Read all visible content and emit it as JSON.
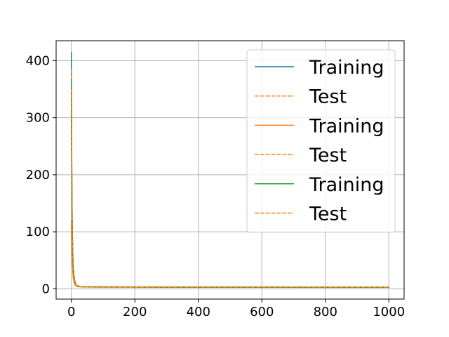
{
  "chart_data": {
    "type": "line",
    "title": "",
    "xlabel": "",
    "ylabel": "",
    "xlim": [
      -48,
      1048
    ],
    "ylim": [
      -18,
      435
    ],
    "xticks": [
      0,
      200,
      400,
      600,
      800,
      1000
    ],
    "yticks": [
      0,
      100,
      200,
      300,
      400
    ],
    "grid": true,
    "legend_position": "top-right",
    "series": [
      {
        "name": "Training",
        "color": "#1f77b4",
        "style": "solid",
        "x": [
          0,
          1,
          2,
          3,
          4,
          5,
          6,
          8,
          10,
          12,
          15,
          20,
          25,
          30,
          40,
          60,
          100,
          200,
          300,
          400,
          500,
          600,
          700,
          800,
          900,
          1000
        ],
        "y": [
          415,
          250,
          160,
          110,
          75,
          55,
          40,
          25,
          16,
          11,
          7,
          5,
          4,
          3.8,
          3.6,
          3.5,
          3.4,
          3.2,
          3.1,
          3.0,
          2.9,
          2.9,
          2.8,
          2.8,
          2.7,
          2.7
        ]
      },
      {
        "name": "Test",
        "color": "#ff7f0e",
        "style": "dashed",
        "x": [
          0,
          1,
          2,
          3,
          4,
          5,
          6,
          8,
          10,
          12,
          15,
          20,
          25,
          30,
          40,
          60,
          100,
          200,
          300,
          400,
          500,
          600,
          700,
          800,
          900,
          1000
        ],
        "y": [
          385,
          240,
          150,
          100,
          70,
          50,
          36,
          23,
          15,
          10,
          7,
          5,
          4.2,
          4.0,
          3.8,
          3.7,
          3.6,
          3.4,
          3.3,
          3.2,
          3.1,
          3.1,
          3.0,
          3.0,
          2.9,
          2.9
        ]
      },
      {
        "name": "Training",
        "color": "#ff7f0e",
        "style": "solid",
        "x": [
          0,
          1,
          2,
          3,
          4,
          5,
          6,
          8,
          10,
          12,
          15,
          20,
          25,
          30,
          40,
          60,
          100,
          200,
          300,
          400,
          500,
          600,
          700,
          800,
          900,
          1000
        ],
        "y": [
          120,
          90,
          65,
          48,
          36,
          27,
          20,
          13,
          9,
          7,
          5,
          4,
          3.6,
          3.4,
          3.2,
          3.1,
          3.0,
          2.9,
          2.8,
          2.7,
          2.7,
          2.6,
          2.6,
          2.5,
          2.5,
          2.5
        ]
      },
      {
        "name": "Test",
        "color": "#ff7f0e",
        "style": "dashed",
        "x": [
          0,
          1,
          2,
          3,
          4,
          5,
          6,
          8,
          10,
          12,
          15,
          20,
          25,
          30,
          40,
          60,
          100,
          200,
          300,
          400,
          500,
          600,
          700,
          800,
          900,
          1000
        ],
        "y": [
          110,
          85,
          62,
          46,
          34,
          26,
          19,
          12.5,
          8.5,
          6.8,
          5,
          4.1,
          3.7,
          3.5,
          3.3,
          3.2,
          3.1,
          3.0,
          2.9,
          2.9,
          2.8,
          2.8,
          2.7,
          2.7,
          2.7,
          2.6
        ]
      },
      {
        "name": "Training",
        "color": "#2ca02c",
        "style": "solid",
        "x": [
          0,
          1,
          2,
          3,
          4,
          5,
          6,
          8,
          10,
          12,
          15,
          20,
          25,
          30,
          40,
          60,
          100,
          200,
          300,
          400,
          500,
          600,
          700,
          800,
          900,
          1000
        ],
        "y": [
          365,
          230,
          140,
          95,
          65,
          46,
          33,
          21,
          14,
          9.5,
          6.5,
          4.8,
          4.0,
          3.7,
          3.5,
          3.4,
          3.3,
          3.1,
          3.0,
          2.9,
          2.8,
          2.8,
          2.7,
          2.7,
          2.6,
          2.6
        ]
      },
      {
        "name": "Test",
        "color": "#ff7f0e",
        "style": "dashed",
        "x": [
          0,
          1,
          2,
          3,
          4,
          5,
          6,
          8,
          10,
          12,
          15,
          20,
          25,
          30,
          40,
          60,
          100,
          200,
          300,
          400,
          500,
          600,
          700,
          800,
          900,
          1000
        ],
        "y": [
          350,
          220,
          135,
          92,
          63,
          45,
          32,
          20,
          13.5,
          9.2,
          6.3,
          4.7,
          4.0,
          3.8,
          3.6,
          3.5,
          3.4,
          3.2,
          3.1,
          3.0,
          3.0,
          2.9,
          2.9,
          2.8,
          2.8,
          2.8
        ]
      }
    ]
  }
}
